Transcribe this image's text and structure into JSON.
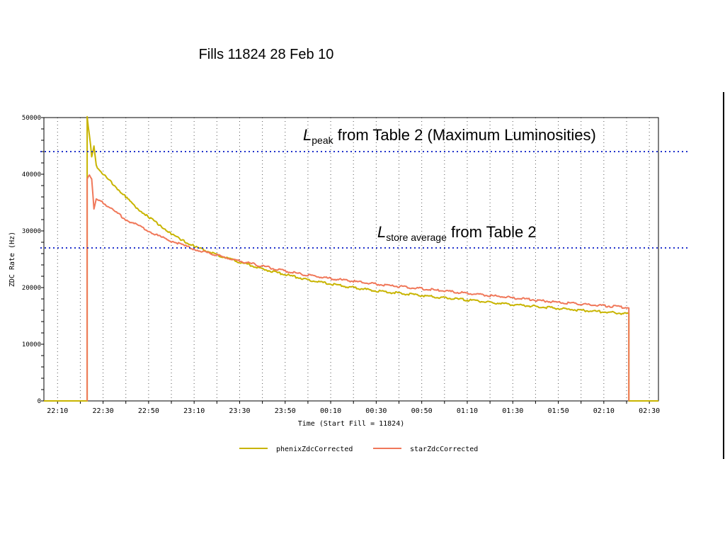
{
  "slide": {
    "title": "Fills 11824 28 Feb 10"
  },
  "annotations": {
    "peak": {
      "symbol": "L",
      "subscript": "peak",
      "text": " from Table 2 (Maximum Luminosities)",
      "value": 44000
    },
    "store": {
      "symbol": "L",
      "subscript": "store average",
      "text": " from Table 2",
      "value": 27000
    }
  },
  "chart_data": {
    "type": "line",
    "title": "",
    "xlabel": "Time (Start Fill = 11824)",
    "ylabel": "ZDC Rate (Hz)",
    "xlim": [
      "22:04",
      "02:34"
    ],
    "ylim": [
      0,
      50000
    ],
    "x_ticks": [
      "22:10",
      "22:30",
      "22:50",
      "23:10",
      "23:30",
      "23:50",
      "00:10",
      "00:30",
      "00:50",
      "01:10",
      "01:30",
      "01:50",
      "02:10",
      "02:30"
    ],
    "y_ticks": [
      "0",
      "10000",
      "20000",
      "30000",
      "40000",
      "50000"
    ],
    "grid": true,
    "legend": "bottom",
    "series": [
      {
        "name": "phenixZdcCorrected",
        "color": "#c8b400",
        "points": [
          [
            "22:04",
            0
          ],
          [
            "22:23",
            0
          ],
          [
            "22:23",
            50000
          ],
          [
            "22:24",
            47000
          ],
          [
            "22:25",
            43000
          ],
          [
            "22:26",
            45000
          ],
          [
            "22:27",
            41500
          ],
          [
            "22:30",
            40000
          ],
          [
            "22:35",
            38000
          ],
          [
            "22:40",
            36000
          ],
          [
            "22:45",
            34000
          ],
          [
            "22:50",
            32500
          ],
          [
            "22:55",
            31000
          ],
          [
            "23:00",
            29500
          ],
          [
            "23:05",
            28300
          ],
          [
            "23:10",
            27300
          ],
          [
            "23:20",
            25800
          ],
          [
            "23:30",
            24500
          ],
          [
            "23:40",
            23300
          ],
          [
            "23:50",
            22300
          ],
          [
            "00:00",
            21400
          ],
          [
            "00:10",
            20600
          ],
          [
            "00:20",
            20000
          ],
          [
            "00:30",
            19400
          ],
          [
            "00:40",
            19000
          ],
          [
            "00:50",
            18600
          ],
          [
            "01:00",
            18200
          ],
          [
            "01:10",
            17800
          ],
          [
            "01:20",
            17400
          ],
          [
            "01:30",
            17000
          ],
          [
            "01:40",
            16700
          ],
          [
            "01:50",
            16300
          ],
          [
            "02:00",
            16000
          ],
          [
            "02:10",
            15700
          ],
          [
            "02:20",
            15400
          ],
          [
            "02:21",
            15400
          ],
          [
            "02:21",
            0
          ],
          [
            "02:34",
            0
          ]
        ]
      },
      {
        "name": "starZdcCorrected",
        "color": "#f0785a",
        "points": [
          [
            "22:23",
            0
          ],
          [
            "22:23",
            39000
          ],
          [
            "22:24",
            40000
          ],
          [
            "22:25",
            39000
          ],
          [
            "22:26",
            34000
          ],
          [
            "22:27",
            35500
          ],
          [
            "22:30",
            35000
          ],
          [
            "22:35",
            33500
          ],
          [
            "22:40",
            32000
          ],
          [
            "22:45",
            31000
          ],
          [
            "22:50",
            30000
          ],
          [
            "22:55",
            29000
          ],
          [
            "23:00",
            28200
          ],
          [
            "23:05",
            27500
          ],
          [
            "23:10",
            26800
          ],
          [
            "23:20",
            25700
          ],
          [
            "23:30",
            24700
          ],
          [
            "23:40",
            23800
          ],
          [
            "23:50",
            22900
          ],
          [
            "00:00",
            22200
          ],
          [
            "00:10",
            21600
          ],
          [
            "00:20",
            21100
          ],
          [
            "00:30",
            20600
          ],
          [
            "00:40",
            20200
          ],
          [
            "00:50",
            19800
          ],
          [
            "01:00",
            19400
          ],
          [
            "01:10",
            19000
          ],
          [
            "01:20",
            18600
          ],
          [
            "01:30",
            18200
          ],
          [
            "01:40",
            17800
          ],
          [
            "01:50",
            17400
          ],
          [
            "02:00",
            17100
          ],
          [
            "02:10",
            16800
          ],
          [
            "02:20",
            16500
          ],
          [
            "02:21",
            16400
          ],
          [
            "02:21",
            0
          ]
        ]
      }
    ]
  }
}
